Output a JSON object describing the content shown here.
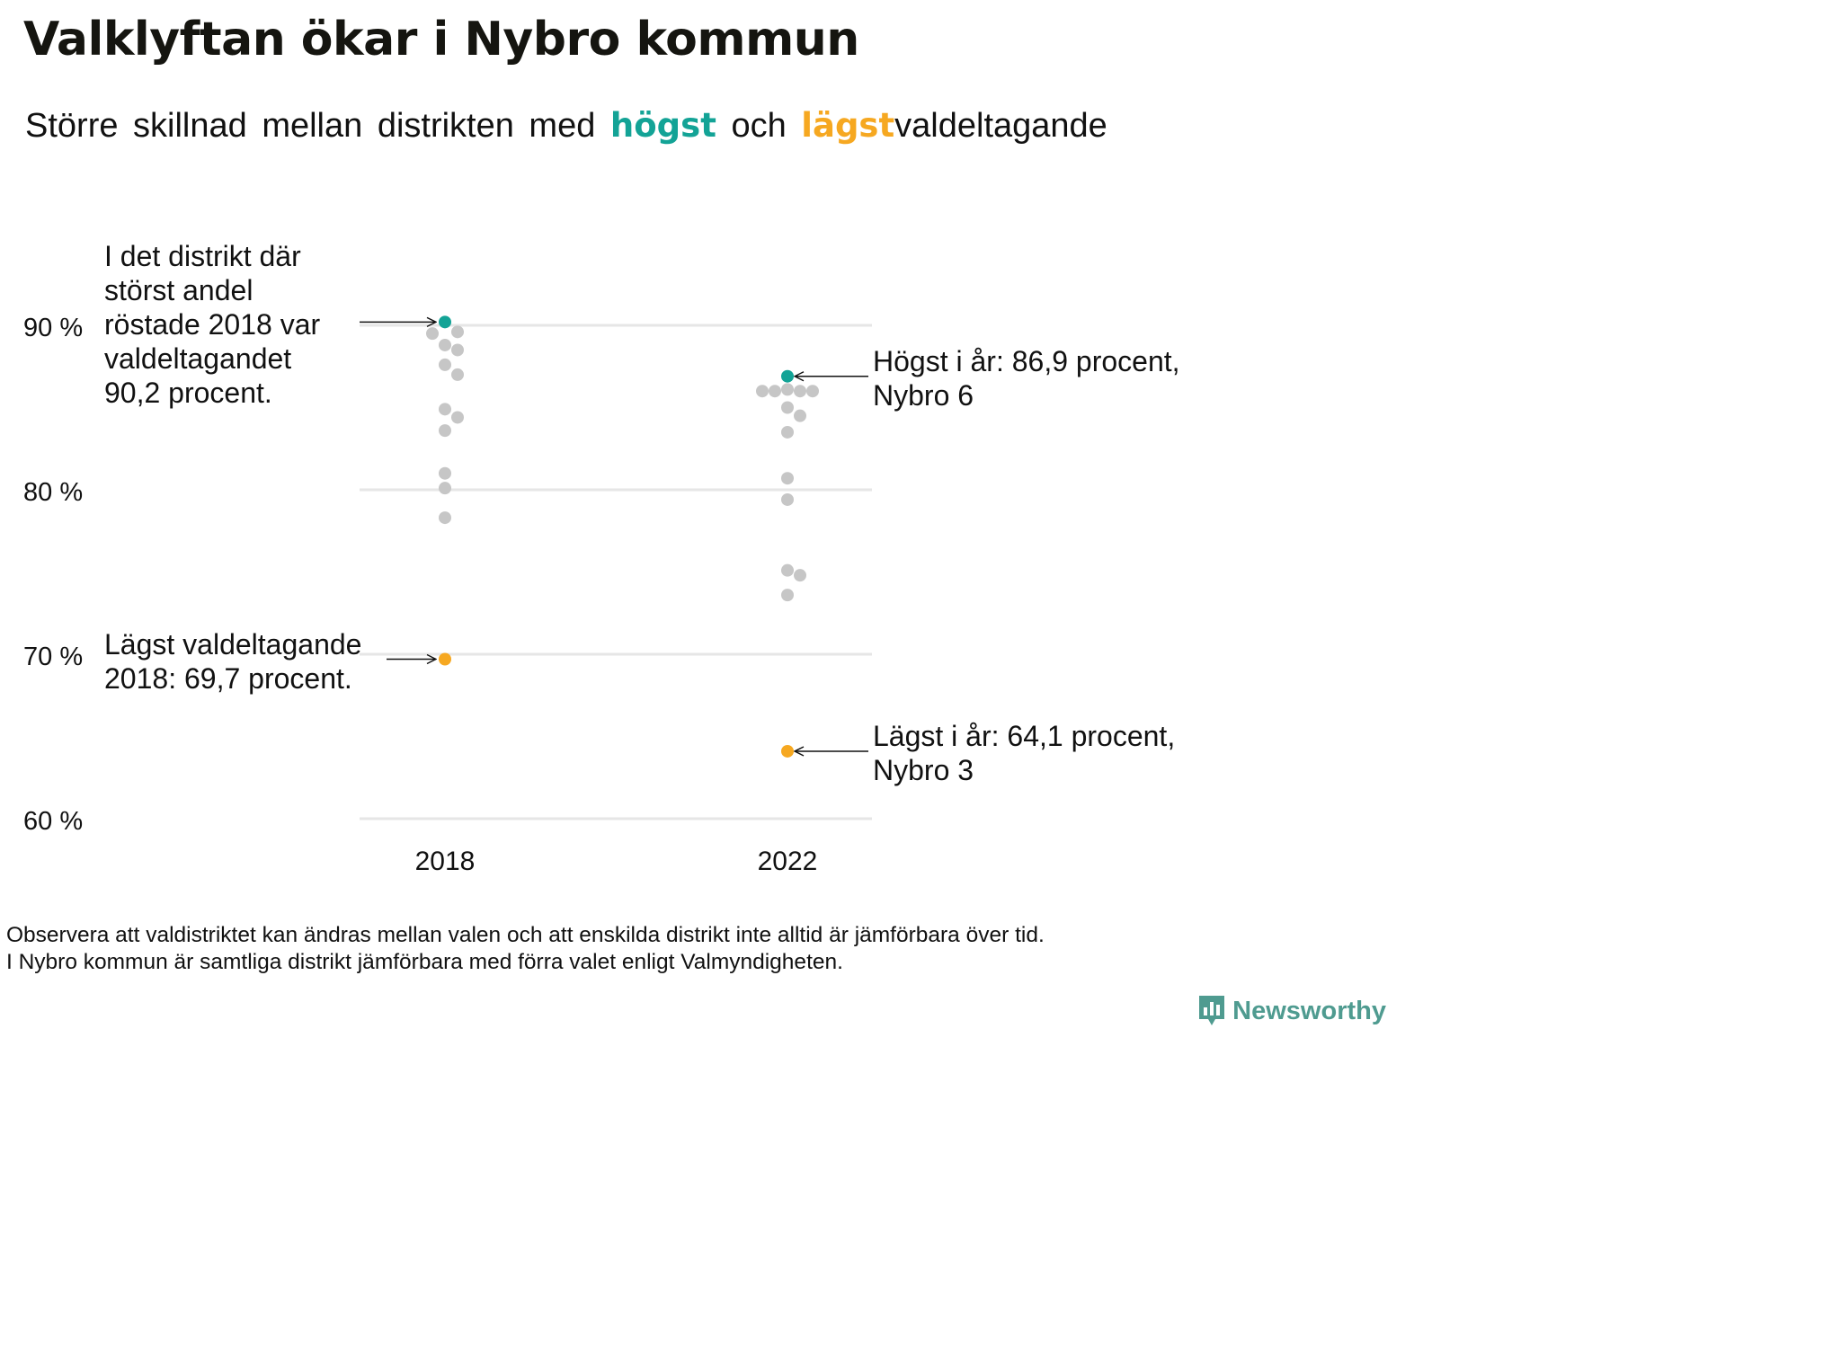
{
  "title": "Valklyftan ökar i Nybro kommun",
  "subtitle": {
    "part1": "Större skillnad mellan distrikten med",
    "highest": "högst",
    "middle": "och",
    "lowest": "lägst",
    "part2": "valdeltagande"
  },
  "colors": {
    "highest": "#13a396",
    "lowest": "#f6a821",
    "other": "#c6c6c6",
    "grid": "#e6e6e6"
  },
  "chart_data": {
    "type": "scatter",
    "categories": [
      "2018",
      "2022"
    ],
    "ylim": [
      60,
      90
    ],
    "y_ticks": [
      60,
      70,
      80,
      90
    ],
    "y_tick_labels": [
      "60 %",
      "70 %",
      "80 %",
      "90 %"
    ],
    "grid": true,
    "series": [
      {
        "x": "2018",
        "values": [
          90.2,
          89.6,
          89.5,
          88.8,
          88.5,
          87.6,
          87.0,
          84.9,
          84.4,
          83.6,
          81.0,
          80.1,
          78.3,
          69.7
        ],
        "highest": 90.2,
        "lowest": 69.7
      },
      {
        "x": "2022",
        "values": [
          86.9,
          86.0,
          86.0,
          86.0,
          86.0,
          86.1,
          85.0,
          84.5,
          83.5,
          80.7,
          79.4,
          75.1,
          74.8,
          73.6,
          64.1
        ],
        "highest": 86.9,
        "lowest": 64.1
      }
    ],
    "annotations": {
      "high_2018": [
        "I det distrikt där",
        "störst andel",
        "röstade 2018 var",
        "valdeltagandet",
        "90,2 procent."
      ],
      "low_2018": [
        "Lägst valdeltagande",
        "2018: 69,7 procent."
      ],
      "high_2022": [
        "Högst i år: 86,9 procent,",
        "Nybro 6"
      ],
      "low_2022": [
        "Lägst i år: 64,1 procent,",
        "Nybro 3"
      ]
    }
  },
  "footnote": {
    "line1": "Observera att valdistriktet kan ändras mellan valen och att enskilda distrikt inte alltid är jämförbara över tid.",
    "line2": "I Nybro kommun är samtliga distrikt jämförbara med förra valet enligt Valmyndigheten."
  },
  "logo": {
    "text": "Newsworthy",
    "icon": "bar-chart-speech-bubble-icon"
  }
}
